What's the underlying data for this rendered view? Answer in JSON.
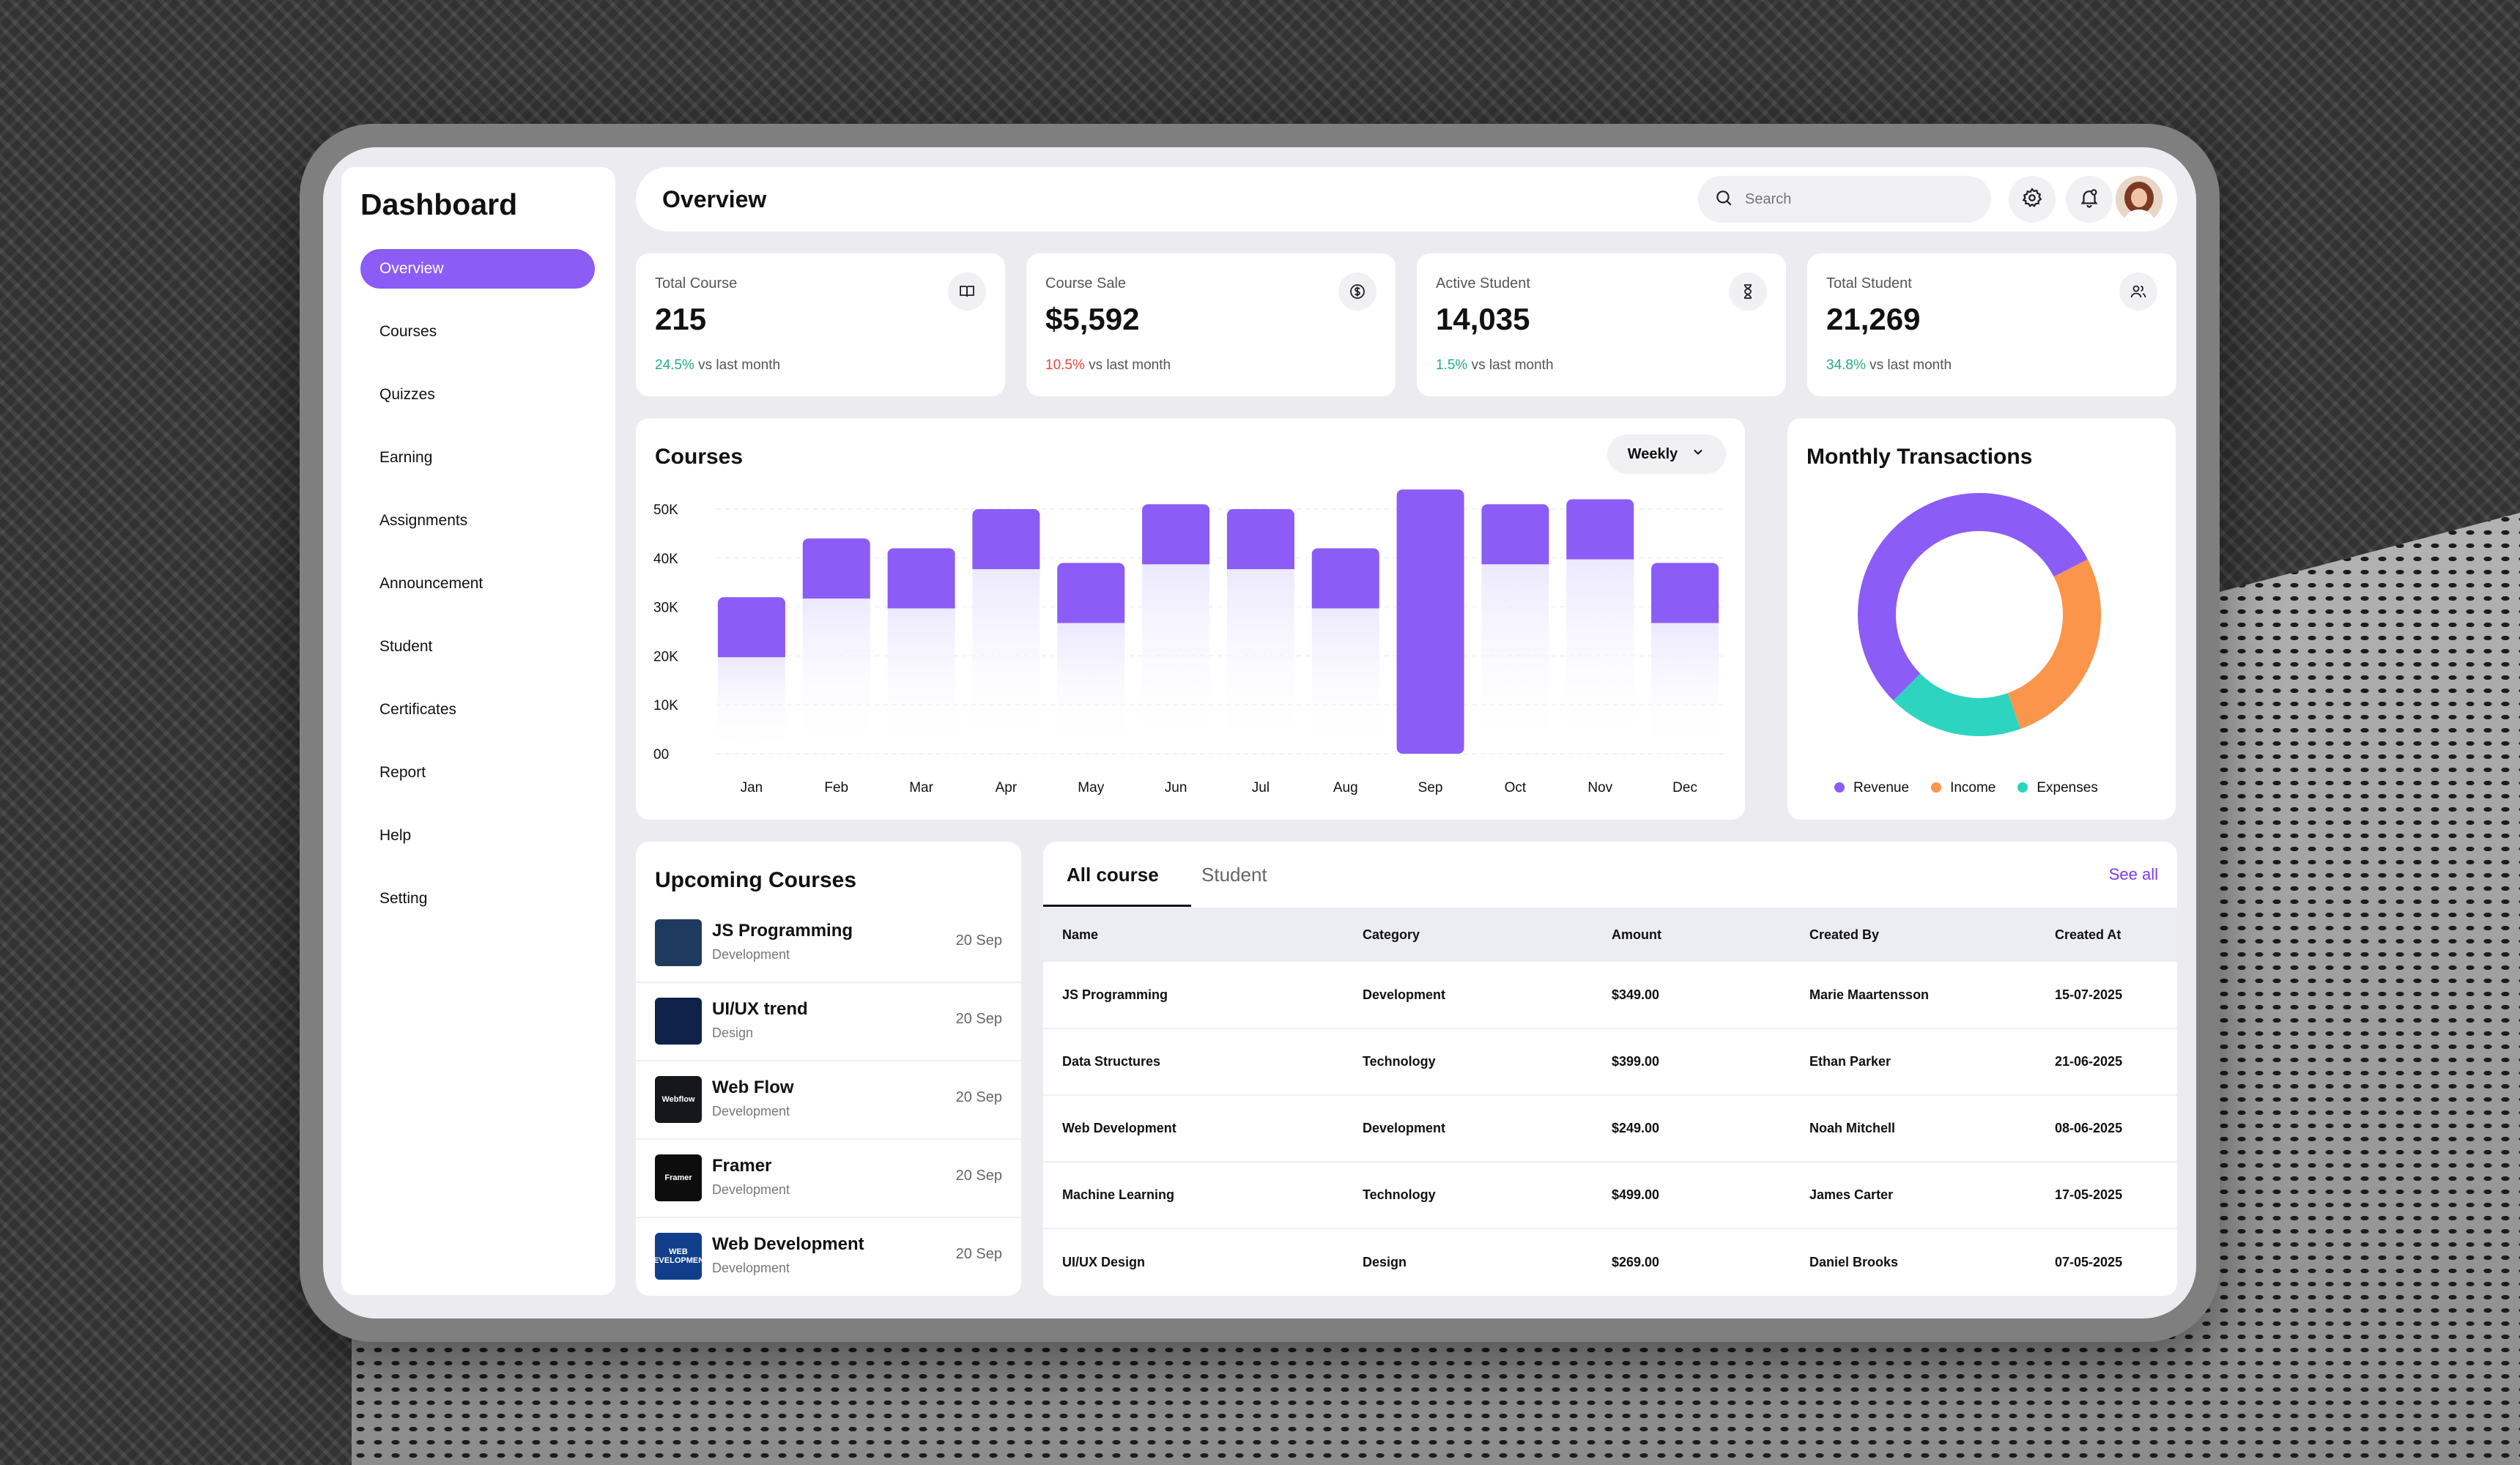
{
  "sidebar": {
    "title": "Dashboard",
    "items": [
      {
        "label": "Overview",
        "active": true
      },
      {
        "label": "Courses"
      },
      {
        "label": "Quizzes"
      },
      {
        "label": "Earning"
      },
      {
        "label": "Assignments"
      },
      {
        "label": "Announcement"
      },
      {
        "label": "Student"
      },
      {
        "label": "Certificates"
      },
      {
        "label": "Report"
      },
      {
        "label": "Help"
      },
      {
        "label": "Setting"
      }
    ]
  },
  "header": {
    "title": "Overview",
    "search_placeholder": "Search",
    "icons": [
      "settings-icon",
      "bell-icon"
    ]
  },
  "stats": [
    {
      "label": "Total Course",
      "value": "215",
      "change": "24.5%",
      "change_color": "#22b07d",
      "suffix": " vs last month",
      "icon": "book-icon"
    },
    {
      "label": "Course Sale",
      "value": "$5,592",
      "change": "10.5%",
      "change_color": "#e5483a",
      "suffix": " vs last month",
      "icon": "dollar-icon"
    },
    {
      "label": "Active Student",
      "value": "14,035",
      "change": "1.5%",
      "change_color": "#22b07d",
      "suffix": " vs last month",
      "icon": "hourglass-icon"
    },
    {
      "label": "Total Student",
      "value": "21,269",
      "change": "34.8%",
      "change_color": "#22b07d",
      "suffix": " vs last month",
      "icon": "users-icon"
    }
  ],
  "courses_chart": {
    "title": "Courses",
    "range_select": "Weekly"
  },
  "transactions": {
    "title": "Monthly Transactions"
  },
  "chart_data": [
    {
      "type": "bar",
      "title": "Courses",
      "categories": [
        "Jan",
        "Feb",
        "Mar",
        "Apr",
        "May",
        "Jun",
        "Jul",
        "Aug",
        "Sep",
        "Oct",
        "Nov",
        "Dec"
      ],
      "y_ticks": [
        "50K",
        "40K",
        "30K",
        "20K",
        "10K",
        "00"
      ],
      "ylim": [
        0,
        50000
      ],
      "values": [
        32000,
        44000,
        42000,
        50000,
        39000,
        51000,
        50000,
        42000,
        54000,
        51000,
        52000,
        39000
      ],
      "highlight_category": "Sep",
      "color": "#8b5cf6"
    },
    {
      "type": "pie",
      "title": "Monthly Transactions",
      "slices": [
        {
          "label": "Revenue",
          "value": 55,
          "color": "#8b5cf6"
        },
        {
          "label": "Income",
          "value": 27,
          "color": "#fb954b"
        },
        {
          "label": "Expenses",
          "value": 18,
          "color": "#2dd4bf"
        }
      ]
    }
  ],
  "upcoming": {
    "title": "Upcoming Courses",
    "items": [
      {
        "name": "JS Programming",
        "category": "Development",
        "date": "20 Sep",
        "thumb": "#1e3a5f"
      },
      {
        "name": "UI/UX trend",
        "category": "Design",
        "date": "20 Sep",
        "thumb": "#10224a"
      },
      {
        "name": "Web Flow",
        "category": "Development",
        "date": "20 Sep",
        "thumb": "#15171c",
        "thumb_text": "Webflow"
      },
      {
        "name": "Framer",
        "category": "Development",
        "date": "20 Sep",
        "thumb": "#0d0d0d",
        "thumb_text": "Framer"
      },
      {
        "name": "Web Development",
        "category": "Development",
        "date": "20 Sep",
        "thumb": "#103e8a",
        "thumb_text": "WEB DEVELOPMENT"
      }
    ]
  },
  "course_table": {
    "tabs": [
      "All course",
      "Student"
    ],
    "see_all": "See all",
    "columns": [
      "Name",
      "Category",
      "Amount",
      "Created By",
      "Created At"
    ],
    "rows": [
      [
        "JS Programming",
        "Development",
        "$349.00",
        "Marie Maartensson",
        "15-07-2025"
      ],
      [
        "Data Structures",
        "Technology",
        "$399.00",
        "Ethan Parker",
        "21-06-2025"
      ],
      [
        "Web Development",
        "Development",
        "$249.00",
        "Noah Mitchell",
        "08-06-2025"
      ],
      [
        "Machine Learning",
        "Technology",
        "$499.00",
        "James Carter",
        "17-05-2025"
      ],
      [
        "UI/UX Design",
        "Design",
        "$269.00",
        "Daniel Brooks",
        "07-05-2025"
      ]
    ]
  }
}
